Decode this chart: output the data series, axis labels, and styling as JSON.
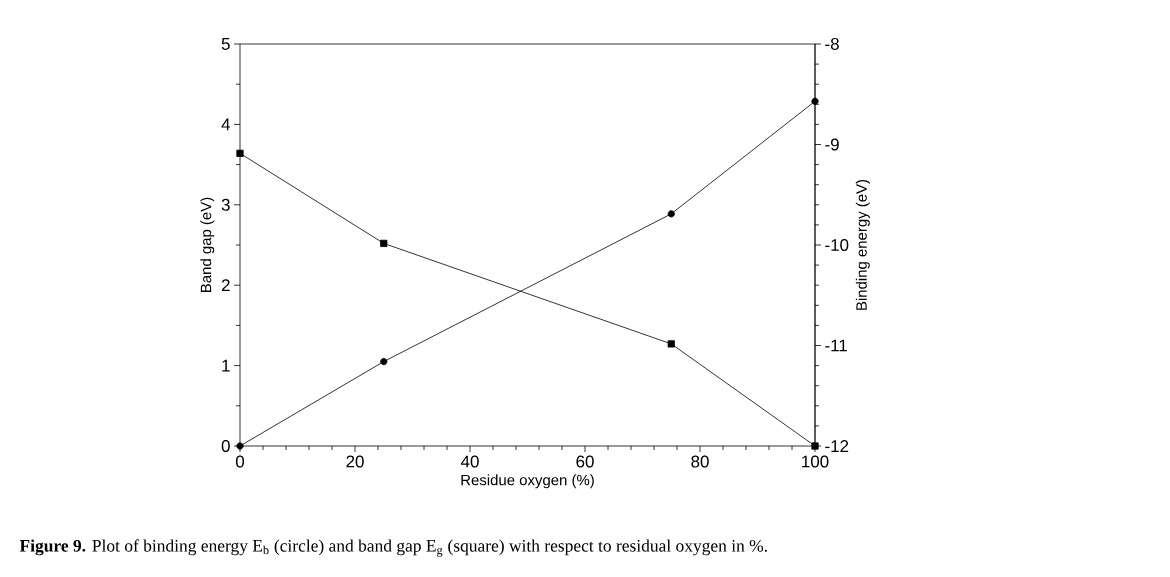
{
  "chart_data": {
    "type": "line",
    "xlabel": "Residue oxygen (%)",
    "ylabel": "Band gap (eV)",
    "y2label": "Binding energy (eV)",
    "x": [
      0,
      25,
      75,
      100
    ],
    "series": [
      {
        "color": "#000000",
        "marker": "square",
        "values": [
          3.64,
          2.52,
          1.27,
          0
        ]
      },
      {
        "color": "#000000",
        "marker": "circle",
        "axis": "y2",
        "values": [
          -12,
          -11.16,
          -9.69,
          -8.57
        ]
      }
    ],
    "xlim": [
      0,
      100
    ],
    "xticks": [
      0,
      20,
      40,
      60,
      80,
      100
    ],
    "ylim": [
      0,
      5
    ],
    "yticks": [
      0,
      1,
      2,
      3,
      4,
      5
    ],
    "y2lim": [
      -12,
      -8
    ],
    "y2ticks": [
      -12,
      -11,
      -10,
      -9,
      -8
    ],
    "line_style": "solid",
    "annotations": [
      "**Figure 9.** Plot of binding energy E$_{b}$ (circle) and band gap E$_{g}$ (square) with respect to residual oxygen in %."
    ]
  }
}
